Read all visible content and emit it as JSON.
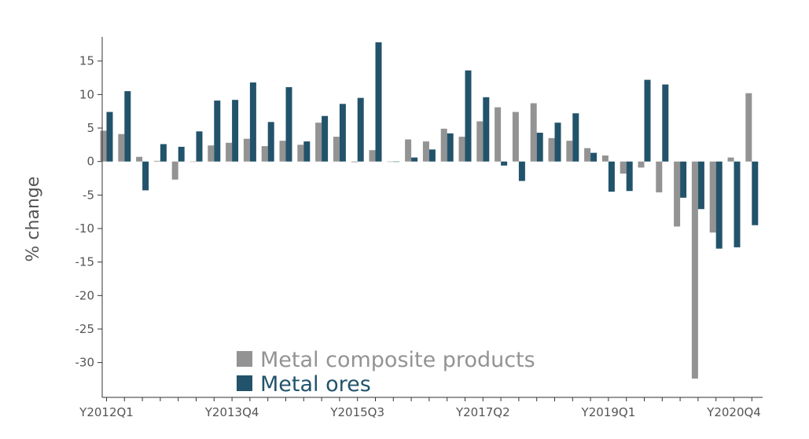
{
  "chart_data": {
    "type": "bar",
    "ylabel": "% change",
    "ylim": [
      -35.2,
      18.6
    ],
    "yticks": [
      -30,
      -25,
      -20,
      -15,
      -10,
      -5,
      0,
      5,
      10,
      15
    ],
    "xtick_labels": [
      "Y2012Q1",
      "Y2013Q4",
      "Y2015Q3",
      "Y2017Q2",
      "Y2019Q1",
      "Y2020Q4"
    ],
    "categories": [
      "Y2012Q1",
      "Y2012Q2",
      "Y2012Q3",
      "Y2012Q4",
      "Y2013Q1",
      "Y2013Q2",
      "Y2013Q3",
      "Y2013Q4",
      "Y2014Q1",
      "Y2014Q2",
      "Y2014Q3",
      "Y2014Q4",
      "Y2015Q1",
      "Y2015Q2",
      "Y2015Q3",
      "Y2015Q4",
      "Y2016Q1",
      "Y2016Q2",
      "Y2016Q3",
      "Y2016Q4",
      "Y2017Q1",
      "Y2017Q2",
      "Y2017Q3",
      "Y2017Q4",
      "Y2018Q1",
      "Y2018Q2",
      "Y2018Q3",
      "Y2018Q4",
      "Y2019Q1",
      "Y2019Q2",
      "Y2019Q3",
      "Y2019Q4",
      "Y2020Q1",
      "Y2020Q2",
      "Y2020Q3",
      "Y2020Q4",
      "Y2021Q1"
    ],
    "legend_position": "bottom-center",
    "series": [
      {
        "name": "Metal composite products",
        "color": "#939393",
        "values": [
          4.6,
          4.1,
          0.7,
          0.1,
          -2.7,
          0.0,
          2.4,
          2.8,
          3.4,
          2.3,
          3.1,
          2.5,
          5.8,
          3.7,
          -0.1,
          1.7,
          0.0,
          3.3,
          3.0,
          4.9,
          3.7,
          6.0,
          8.1,
          7.4,
          8.7,
          3.5,
          3.1,
          2.0,
          0.9,
          -1.8,
          -0.9,
          -4.6,
          -9.7,
          -32.4,
          -10.6,
          0.6,
          10.2
        ]
      },
      {
        "name": "Metal ores",
        "color": "#22536b",
        "values": [
          7.4,
          10.5,
          -4.3,
          2.6,
          2.2,
          4.5,
          9.1,
          9.2,
          11.8,
          5.9,
          11.1,
          3.0,
          6.8,
          8.6,
          9.5,
          17.8,
          0.0,
          0.6,
          1.8,
          4.2,
          13.6,
          9.6,
          -0.6,
          -2.9,
          4.3,
          5.8,
          7.2,
          1.3,
          -4.5,
          -4.4,
          12.2,
          11.5,
          -5.4,
          -7.1,
          -13.0,
          -12.8,
          -9.5
        ]
      }
    ]
  }
}
